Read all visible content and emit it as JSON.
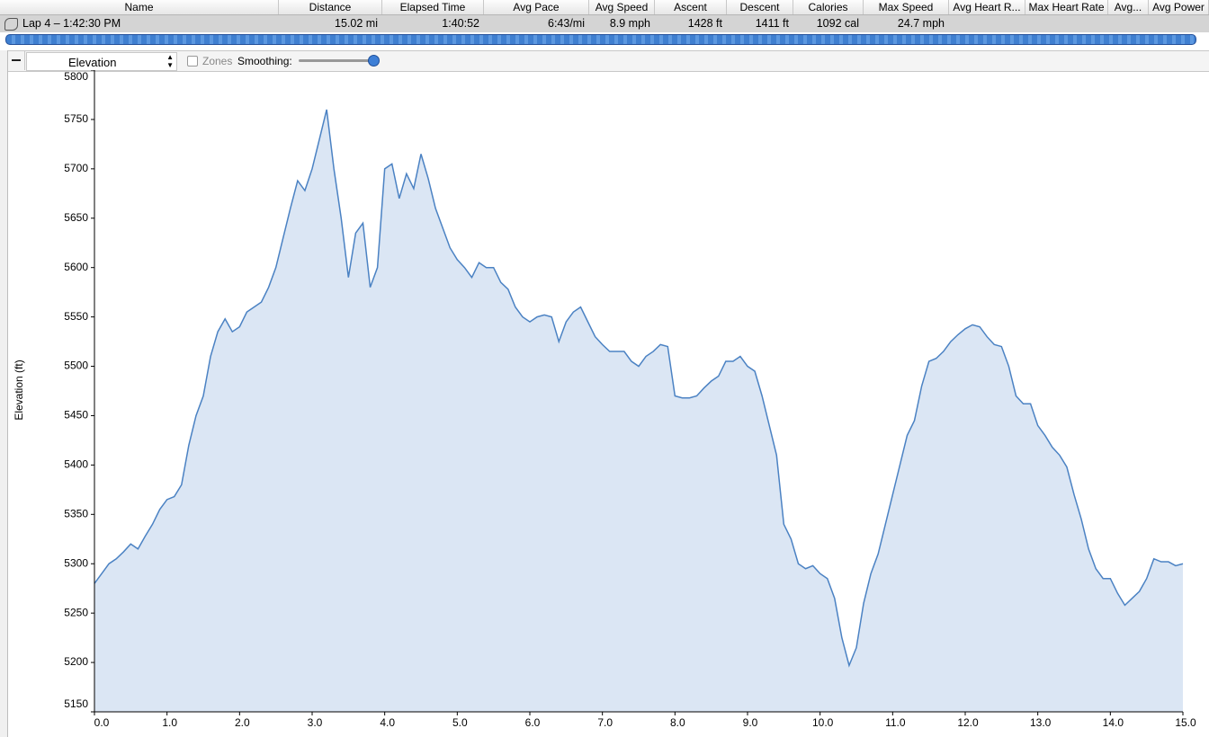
{
  "table": {
    "columns": [
      "Name",
      "Distance",
      "Elapsed Time",
      "Avg Pace",
      "Avg Speed",
      "Ascent",
      "Descent",
      "Calories",
      "Max Speed",
      "Avg Heart R...",
      "Max Heart Rate",
      "Avg...",
      "Avg Power"
    ],
    "rows": [
      [
        "Lap 4 – 1:42:30 PM",
        "15.02 mi",
        "1:40:52",
        "6:43/mi",
        "8.9 mph",
        "1428 ft",
        "1411 ft",
        "1092 cal",
        "24.7 mph"
      ]
    ]
  },
  "toolbar": {
    "chart_select": "Elevation",
    "zones_label": "Zones",
    "smoothing_label": "Smoothing:"
  },
  "chart_data": {
    "type": "area",
    "ylabel": "Elevation (ft)",
    "color": "#4b82c3",
    "fill_color": "#dbe6f4",
    "x": [
      0,
      0.1,
      0.2,
      0.3,
      0.4,
      0.5,
      0.6,
      0.7,
      0.8,
      0.9,
      1,
      1.1,
      1.2,
      1.3,
      1.4,
      1.5,
      1.6,
      1.7,
      1.8,
      1.9,
      2,
      2.1,
      2.2,
      2.3,
      2.4,
      2.5,
      2.6,
      2.7,
      2.8,
      2.9,
      3,
      3.1,
      3.2,
      3.3,
      3.4,
      3.5,
      3.6,
      3.7,
      3.8,
      3.9,
      4,
      4.1,
      4.2,
      4.3,
      4.4,
      4.5,
      4.6,
      4.7,
      4.8,
      4.9,
      5,
      5.1,
      5.2,
      5.3,
      5.4,
      5.5,
      5.6,
      5.7,
      5.8,
      5.9,
      6,
      6.1,
      6.2,
      6.3,
      6.4,
      6.5,
      6.6,
      6.7,
      6.8,
      6.9,
      7,
      7.1,
      7.2,
      7.3,
      7.4,
      7.5,
      7.6,
      7.7,
      7.8,
      7.9,
      8,
      8.1,
      8.2,
      8.3,
      8.4,
      8.5,
      8.6,
      8.7,
      8.8,
      8.9,
      9,
      9.1,
      9.2,
      9.3,
      9.4,
      9.5,
      9.6,
      9.7,
      9.8,
      9.9,
      10,
      10.1,
      10.2,
      10.3,
      10.4,
      10.5,
      10.6,
      10.7,
      10.8,
      10.9,
      11,
      11.1,
      11.2,
      11.3,
      11.4,
      11.5,
      11.6,
      11.7,
      11.8,
      11.9,
      12,
      12.1,
      12.2,
      12.3,
      12.4,
      12.5,
      12.6,
      12.7,
      12.8,
      12.9,
      13,
      13.1,
      13.2,
      13.3,
      13.4,
      13.5,
      13.6,
      13.7,
      13.8,
      13.9,
      14,
      14.1,
      14.2,
      14.3,
      14.4,
      14.5,
      14.6,
      14.7,
      14.8,
      14.9,
      15
    ],
    "values": [
      5280,
      5290,
      5300,
      5305,
      5312,
      5320,
      5315,
      5328,
      5340,
      5355,
      5365,
      5368,
      5380,
      5420,
      5450,
      5470,
      5510,
      5535,
      5548,
      5535,
      5540,
      5555,
      5560,
      5565,
      5580,
      5600,
      5630,
      5660,
      5688,
      5678,
      5700,
      5730,
      5760,
      5700,
      5650,
      5590,
      5635,
      5645,
      5580,
      5600,
      5700,
      5705,
      5670,
      5695,
      5680,
      5715,
      5690,
      5660,
      5640,
      5620,
      5608,
      5600,
      5590,
      5605,
      5600,
      5600,
      5585,
      5578,
      5560,
      5550,
      5545,
      5550,
      5552,
      5550,
      5525,
      5545,
      5555,
      5560,
      5545,
      5530,
      5522,
      5515,
      5515,
      5515,
      5505,
      5500,
      5510,
      5515,
      5522,
      5520,
      5470,
      5468,
      5468,
      5470,
      5478,
      5485,
      5490,
      5505,
      5505,
      5510,
      5500,
      5495,
      5470,
      5440,
      5410,
      5340,
      5325,
      5300,
      5295,
      5298,
      5290,
      5285,
      5265,
      5225,
      5197,
      5215,
      5260,
      5290,
      5310,
      5340,
      5370,
      5400,
      5430,
      5445,
      5480,
      5505,
      5508,
      5515,
      5525,
      5532,
      5538,
      5542,
      5540,
      5530,
      5522,
      5520,
      5500,
      5470,
      5462,
      5462,
      5440,
      5430,
      5418,
      5410,
      5398,
      5370,
      5345,
      5315,
      5295,
      5285,
      5285,
      5270,
      5258,
      5265,
      5272,
      5285,
      5305,
      5302,
      5302,
      5298,
      5300
    ],
    "xlim": [
      0,
      15
    ],
    "ylim": [
      5150,
      5800
    ],
    "xticks": [
      {
        "value": 0,
        "label": "0.0"
      },
      {
        "value": 1,
        "label": "1.0"
      },
      {
        "value": 2,
        "label": "2.0"
      },
      {
        "value": 3,
        "label": "3.0"
      },
      {
        "value": 4,
        "label": "4.0"
      },
      {
        "value": 5,
        "label": "5.0"
      },
      {
        "value": 6,
        "label": "6.0"
      },
      {
        "value": 7,
        "label": "7.0"
      },
      {
        "value": 8,
        "label": "8.0"
      },
      {
        "value": 9,
        "label": "9.0"
      },
      {
        "value": 10,
        "label": "10.0"
      },
      {
        "value": 11,
        "label": "11.0"
      },
      {
        "value": 12,
        "label": "12.0"
      },
      {
        "value": 13,
        "label": "13.0"
      },
      {
        "value": 14,
        "label": "14.0"
      },
      {
        "value": 15,
        "label": "15.0"
      }
    ],
    "yticks": [
      5150,
      5200,
      5250,
      5300,
      5350,
      5400,
      5450,
      5500,
      5550,
      5600,
      5650,
      5700,
      5750,
      5800
    ]
  }
}
